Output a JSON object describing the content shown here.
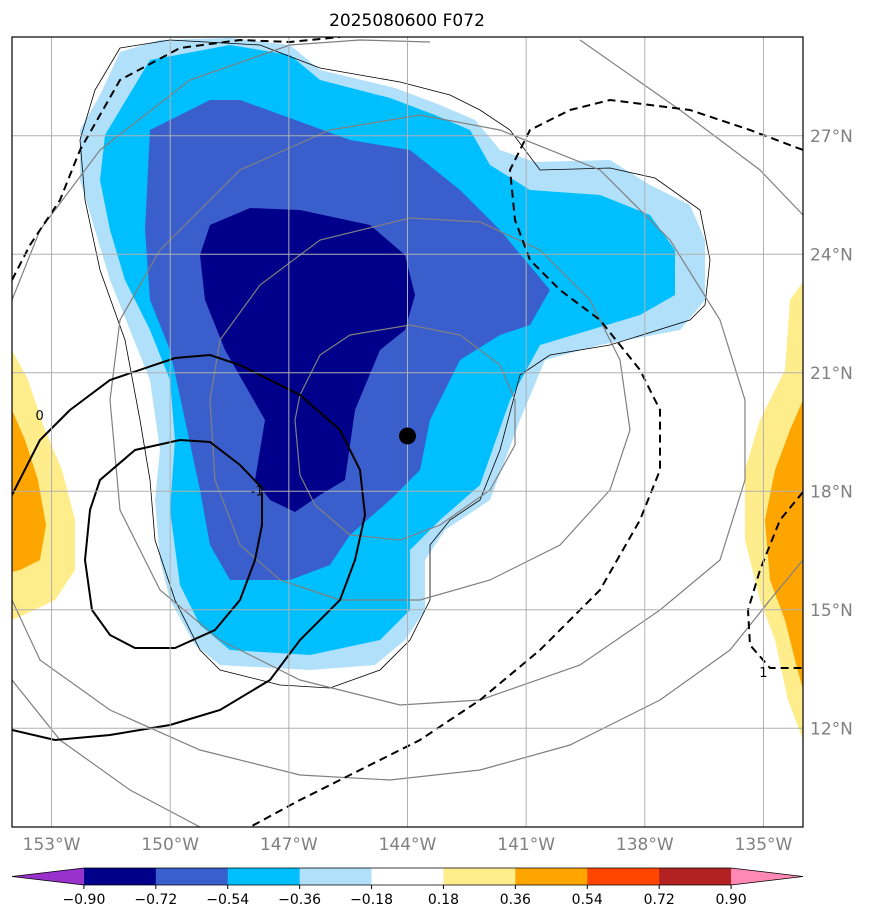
{
  "title": "2025080600 F072",
  "map": {
    "lon_range": [
      -154.0,
      -134.0
    ],
    "lat_range": [
      9.5,
      29.5
    ],
    "lon_ticks": [
      {
        "value": -153,
        "label": "153°W"
      },
      {
        "value": -150,
        "label": "150°W"
      },
      {
        "value": -147,
        "label": "147°W"
      },
      {
        "value": -144,
        "label": "144°W"
      },
      {
        "value": -141,
        "label": "141°W"
      },
      {
        "value": -138,
        "label": "138°W"
      },
      {
        "value": -135,
        "label": "135°W"
      }
    ],
    "lat_ticks": [
      {
        "value": 27,
        "label": "27°N"
      },
      {
        "value": 24,
        "label": "24°N"
      },
      {
        "value": 21,
        "label": "21°N"
      },
      {
        "value": 18,
        "label": "18°N"
      },
      {
        "value": 15,
        "label": "15°N"
      },
      {
        "value": 12,
        "label": "12°N"
      }
    ],
    "center_marker": {
      "lon": -144.0,
      "lat": 19.4
    },
    "contour_labels": [
      {
        "text": "0",
        "lon": -153.3,
        "lat": 19.9
      },
      {
        "text": "-1",
        "lon": -147.8,
        "lat": 18.0
      },
      {
        "text": "1",
        "lon": -135.0,
        "lat": 13.4
      }
    ]
  },
  "colorbar": {
    "levels": [
      "−0.90",
      "−0.72",
      "−0.54",
      "−0.36",
      "−0.18",
      "0.18",
      "0.36",
      "0.54",
      "0.72",
      "0.90"
    ],
    "colors": {
      "under": "#9932cc",
      "bins": [
        "#00008b",
        "#3a5fcd",
        "#00bfff",
        "#b0e0fa",
        "#ffffff",
        "#ffec8b",
        "#ffa500",
        "#ff4500",
        "#b22222"
      ],
      "over": "#ff88b4"
    }
  },
  "colors": {
    "dark_blue": "#00008b",
    "mid_blue": "#3a5fcd",
    "deep_sky": "#00bfff",
    "light_blue": "#b0e0fa",
    "light_yellow": "#ffec8b",
    "orange": "#ffa500",
    "grid": "#b0b0b0",
    "gray_contour": "#808080"
  }
}
